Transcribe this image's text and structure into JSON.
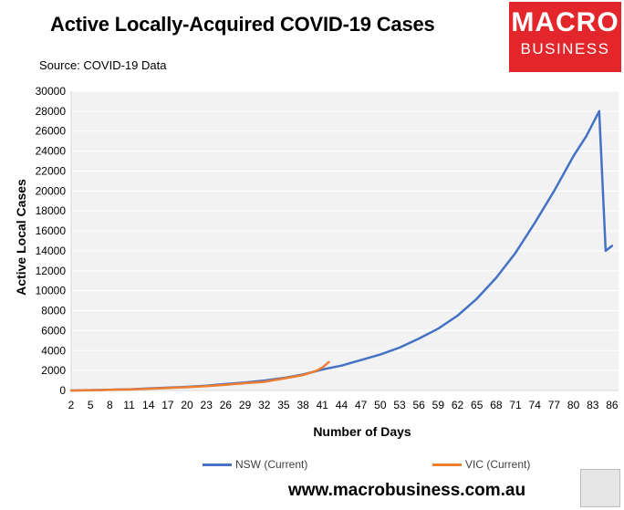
{
  "header": {
    "title": "Active Locally-Acquired COVID-19 Cases",
    "source": "Source: COVID-19 Data"
  },
  "logo": {
    "line1": "MACRO",
    "line2": "BUSINESS"
  },
  "footer": {
    "website": "www.macrobusiness.com.au"
  },
  "colors": {
    "nsw": "#4472c4",
    "vic": "#ed7d31",
    "plot_bg": "#f2f2f2",
    "gridline": "#ffffff"
  },
  "chart_data": {
    "type": "line",
    "title": "Active Locally-Acquired COVID-19 Cases",
    "xlabel": "Number of Days",
    "ylabel": "Active Local Cases",
    "xlim": [
      2,
      87
    ],
    "ylim": [
      0,
      30000
    ],
    "x_ticks": [
      2,
      5,
      8,
      11,
      14,
      17,
      20,
      23,
      26,
      29,
      32,
      35,
      38,
      41,
      44,
      47,
      50,
      53,
      56,
      59,
      62,
      65,
      68,
      71,
      74,
      77,
      80,
      83,
      86
    ],
    "y_ticks": [
      0,
      2000,
      4000,
      6000,
      8000,
      10000,
      12000,
      14000,
      16000,
      18000,
      20000,
      22000,
      24000,
      26000,
      28000,
      30000
    ],
    "grid": "horizontal",
    "legend_position": "bottom",
    "series": [
      {
        "name": "NSW (Current)",
        "points": [
          [
            2,
            0
          ],
          [
            5,
            40
          ],
          [
            8,
            70
          ],
          [
            11,
            120
          ],
          [
            14,
            200
          ],
          [
            17,
            280
          ],
          [
            20,
            370
          ],
          [
            23,
            480
          ],
          [
            26,
            650
          ],
          [
            29,
            800
          ],
          [
            32,
            1000
          ],
          [
            35,
            1250
          ],
          [
            38,
            1600
          ],
          [
            41,
            2100
          ],
          [
            44,
            2500
          ],
          [
            47,
            3050
          ],
          [
            50,
            3600
          ],
          [
            53,
            4300
          ],
          [
            56,
            5200
          ],
          [
            59,
            6200
          ],
          [
            62,
            7500
          ],
          [
            65,
            9200
          ],
          [
            68,
            11300
          ],
          [
            71,
            13800
          ],
          [
            74,
            16800
          ],
          [
            77,
            20000
          ],
          [
            80,
            23500
          ],
          [
            82,
            25500
          ],
          [
            84,
            28000
          ],
          [
            85,
            14000
          ],
          [
            86,
            14500
          ]
        ]
      },
      {
        "name": "VIC (Current)",
        "points": [
          [
            2,
            0
          ],
          [
            5,
            30
          ],
          [
            8,
            60
          ],
          [
            11,
            100
          ],
          [
            14,
            170
          ],
          [
            17,
            250
          ],
          [
            20,
            330
          ],
          [
            23,
            430
          ],
          [
            26,
            580
          ],
          [
            29,
            730
          ],
          [
            32,
            870
          ],
          [
            35,
            1200
          ],
          [
            38,
            1550
          ],
          [
            40,
            1950
          ],
          [
            41,
            2300
          ],
          [
            42,
            2850
          ]
        ]
      }
    ]
  }
}
